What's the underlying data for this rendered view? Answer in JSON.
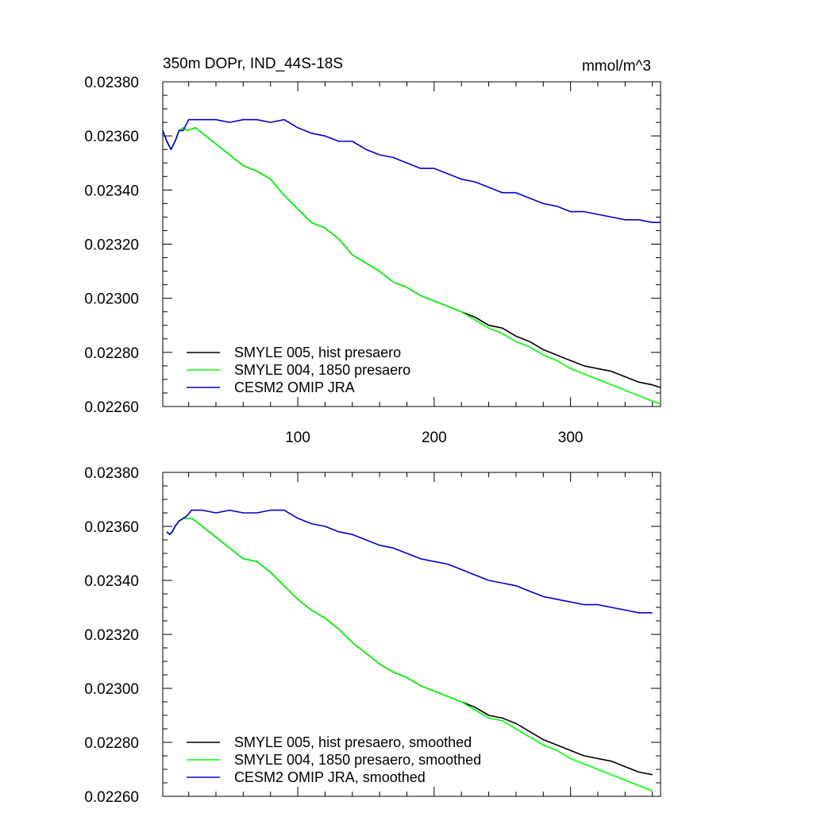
{
  "chart_data": [
    {
      "type": "line",
      "title": "350m DOPr, IND_44S-18S",
      "units": "mmol/m^3",
      "xlim": [
        1,
        366
      ],
      "ylim": [
        0.0226,
        0.0238
      ],
      "x_ticks": [
        100,
        200,
        300
      ],
      "y_ticks": [
        "0.02260",
        "0.02280",
        "0.02300",
        "0.02320",
        "0.02340",
        "0.02360",
        "0.02380"
      ],
      "legend_position": "bottom-left",
      "series": [
        {
          "name": "SMYLE 005, hist presaero",
          "color": "#000000",
          "x": [
            1,
            4,
            7,
            10,
            13,
            16,
            19,
            25,
            30,
            40,
            50,
            60,
            70,
            80,
            90,
            100,
            110,
            120,
            130,
            140,
            150,
            160,
            170,
            180,
            190,
            200,
            210,
            220,
            230,
            240,
            250,
            260,
            270,
            280,
            290,
            300,
            310,
            320,
            330,
            340,
            350,
            360,
            366
          ],
          "y": [
            0.02362,
            0.02358,
            0.02355,
            0.02358,
            0.02362,
            0.02363,
            0.02362,
            0.02363,
            0.02361,
            0.02357,
            0.02353,
            0.02349,
            0.02347,
            0.02344,
            0.02338,
            0.02333,
            0.02328,
            0.02326,
            0.02322,
            0.02316,
            0.02313,
            0.0231,
            0.02306,
            0.02304,
            0.02301,
            0.02299,
            0.02297,
            0.02295,
            0.02293,
            0.0229,
            0.02289,
            0.02286,
            0.02284,
            0.02281,
            0.02279,
            0.02277,
            0.02275,
            0.02274,
            0.02273,
            0.02271,
            0.02269,
            0.02268,
            0.02267
          ]
        },
        {
          "name": "SMYLE 004, 1850 presaero",
          "color": "#00ff00",
          "x": [
            1,
            4,
            7,
            10,
            13,
            16,
            19,
            25,
            30,
            40,
            50,
            60,
            70,
            80,
            90,
            100,
            110,
            120,
            130,
            140,
            150,
            160,
            170,
            180,
            190,
            200,
            210,
            220,
            230,
            240,
            250,
            260,
            270,
            280,
            290,
            300,
            310,
            320,
            330,
            340,
            350,
            360,
            366
          ],
          "y": [
            0.02362,
            0.02358,
            0.02355,
            0.02358,
            0.02362,
            0.02363,
            0.02362,
            0.02363,
            0.02361,
            0.02357,
            0.02353,
            0.02349,
            0.02347,
            0.02344,
            0.02338,
            0.02333,
            0.02328,
            0.02326,
            0.02322,
            0.02316,
            0.02313,
            0.0231,
            0.02306,
            0.02304,
            0.02301,
            0.02299,
            0.02297,
            0.02295,
            0.02292,
            0.02289,
            0.02287,
            0.02284,
            0.02282,
            0.02279,
            0.02277,
            0.02274,
            0.02272,
            0.0227,
            0.02268,
            0.02266,
            0.02264,
            0.02262,
            0.02261
          ]
        },
        {
          "name": "CESM2 OMIP JRA",
          "color": "#0000cd",
          "x": [
            1,
            4,
            7,
            10,
            13,
            16,
            20,
            25,
            30,
            40,
            50,
            60,
            70,
            80,
            90,
            100,
            110,
            120,
            130,
            140,
            150,
            160,
            170,
            180,
            190,
            200,
            210,
            220,
            230,
            240,
            250,
            260,
            270,
            280,
            290,
            300,
            310,
            320,
            330,
            340,
            350,
            360,
            366
          ],
          "y": [
            0.02362,
            0.02358,
            0.02355,
            0.02358,
            0.02362,
            0.02362,
            0.02366,
            0.02366,
            0.02366,
            0.02366,
            0.02365,
            0.02366,
            0.02366,
            0.02365,
            0.02366,
            0.02363,
            0.02361,
            0.0236,
            0.02358,
            0.02358,
            0.02355,
            0.02353,
            0.02352,
            0.0235,
            0.02348,
            0.02348,
            0.02346,
            0.02344,
            0.02343,
            0.02341,
            0.02339,
            0.02339,
            0.02337,
            0.02335,
            0.02334,
            0.02332,
            0.02332,
            0.02331,
            0.0233,
            0.02329,
            0.02329,
            0.02328,
            0.02328
          ]
        }
      ]
    },
    {
      "type": "line",
      "xlim": [
        1,
        366
      ],
      "ylim": [
        0.0226,
        0.0238
      ],
      "y_ticks": [
        "0.02260",
        "0.02280",
        "0.02300",
        "0.02320",
        "0.02340",
        "0.02360",
        "0.02380"
      ],
      "legend_position": "bottom-left",
      "series": [
        {
          "name": "SMYLE 005, hist presaero, smoothed",
          "color": "#000000",
          "x": [
            4,
            6,
            8,
            10,
            13,
            16,
            19,
            22,
            25,
            30,
            40,
            50,
            60,
            70,
            80,
            90,
            100,
            110,
            120,
            130,
            140,
            150,
            160,
            170,
            180,
            190,
            200,
            210,
            220,
            230,
            240,
            250,
            260,
            270,
            280,
            290,
            300,
            310,
            320,
            330,
            340,
            350,
            360
          ],
          "y": [
            0.02358,
            0.02357,
            0.02358,
            0.0236,
            0.02362,
            0.02363,
            0.02363,
            0.02363,
            0.02362,
            0.0236,
            0.02356,
            0.02352,
            0.02348,
            0.02347,
            0.02343,
            0.02338,
            0.02333,
            0.02329,
            0.02326,
            0.02322,
            0.02317,
            0.02313,
            0.02309,
            0.02306,
            0.02304,
            0.02301,
            0.02299,
            0.02297,
            0.02295,
            0.02293,
            0.0229,
            0.02289,
            0.02287,
            0.02284,
            0.02281,
            0.02279,
            0.02277,
            0.02275,
            0.02274,
            0.02273,
            0.02271,
            0.02269,
            0.02268
          ]
        },
        {
          "name": "SMYLE 004, 1850 presaero, smoothed",
          "color": "#00ff00",
          "x": [
            4,
            6,
            8,
            10,
            13,
            16,
            19,
            22,
            25,
            30,
            40,
            50,
            60,
            70,
            80,
            90,
            100,
            110,
            120,
            130,
            140,
            150,
            160,
            170,
            180,
            190,
            200,
            210,
            220,
            230,
            240,
            250,
            260,
            270,
            280,
            290,
            300,
            310,
            320,
            330,
            340,
            350,
            360
          ],
          "y": [
            0.02358,
            0.02357,
            0.02358,
            0.0236,
            0.02362,
            0.02363,
            0.02363,
            0.02363,
            0.02362,
            0.0236,
            0.02356,
            0.02352,
            0.02348,
            0.02347,
            0.02343,
            0.02338,
            0.02333,
            0.02329,
            0.02326,
            0.02322,
            0.02317,
            0.02313,
            0.02309,
            0.02306,
            0.02304,
            0.02301,
            0.02299,
            0.02297,
            0.02295,
            0.02292,
            0.02289,
            0.02288,
            0.02285,
            0.02282,
            0.02279,
            0.02277,
            0.02274,
            0.02272,
            0.0227,
            0.02268,
            0.02266,
            0.02264,
            0.02262
          ]
        },
        {
          "name": "CESM2 OMIP JRA, smoothed",
          "color": "#0000cd",
          "x": [
            4,
            6,
            8,
            10,
            13,
            16,
            19,
            22,
            25,
            30,
            40,
            50,
            60,
            70,
            80,
            90,
            100,
            110,
            120,
            130,
            140,
            150,
            160,
            170,
            180,
            190,
            200,
            210,
            220,
            230,
            240,
            250,
            260,
            270,
            280,
            290,
            300,
            310,
            320,
            330,
            340,
            350,
            360
          ],
          "y": [
            0.02358,
            0.02357,
            0.02358,
            0.0236,
            0.02362,
            0.02363,
            0.02364,
            0.02366,
            0.02366,
            0.02366,
            0.02365,
            0.02366,
            0.02365,
            0.02365,
            0.02366,
            0.02366,
            0.02363,
            0.02361,
            0.0236,
            0.02358,
            0.02357,
            0.02355,
            0.02353,
            0.02352,
            0.0235,
            0.02348,
            0.02347,
            0.02346,
            0.02344,
            0.02342,
            0.0234,
            0.02339,
            0.02338,
            0.02336,
            0.02334,
            0.02333,
            0.02332,
            0.02331,
            0.02331,
            0.0233,
            0.02329,
            0.02328,
            0.02328
          ]
        }
      ]
    }
  ]
}
